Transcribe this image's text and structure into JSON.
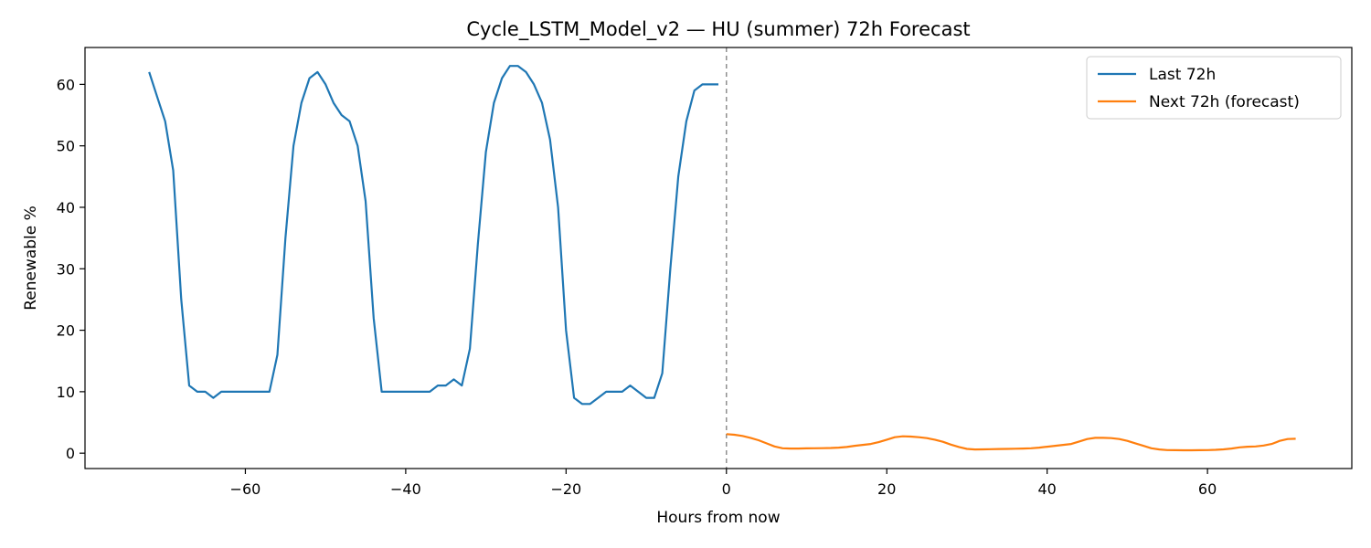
{
  "chart_data": {
    "type": "line",
    "title": "Cycle_LSTM_Model_v2 — HU (summer) 72h Forecast",
    "xlabel": "Hours from now",
    "ylabel": "Renewable %",
    "xlim": [
      -80,
      78
    ],
    "ylim": [
      -2.5,
      66
    ],
    "xticks": [
      -60,
      -40,
      -20,
      0,
      20,
      40,
      60
    ],
    "yticks": [
      0,
      10,
      20,
      30,
      40,
      50,
      60
    ],
    "tick_labels_x": [
      "−60",
      "−40",
      "−20",
      "0",
      "20",
      "40",
      "60"
    ],
    "tick_labels_y": [
      "0",
      "10",
      "20",
      "30",
      "40",
      "50",
      "60"
    ],
    "vline_x": 0,
    "legend": {
      "placement": "top-right"
    },
    "series": [
      {
        "name": "Last 72h",
        "color": "#1f77b4",
        "x": [
          -72,
          -71,
          -70,
          -69,
          -68,
          -67,
          -66,
          -65,
          -64,
          -63,
          -62,
          -61,
          -60,
          -59,
          -58,
          -57,
          -56,
          -55,
          -54,
          -53,
          -52,
          -51,
          -50,
          -49,
          -48,
          -47,
          -46,
          -45,
          -44,
          -43,
          -42,
          -41,
          -40,
          -39,
          -38,
          -37,
          -36,
          -35,
          -34,
          -33,
          -32,
          -31,
          -30,
          -29,
          -28,
          -27,
          -26,
          -25,
          -24,
          -23,
          -22,
          -21,
          -20,
          -19,
          -18,
          -17,
          -16,
          -15,
          -14,
          -13,
          -12,
          -11,
          -10,
          -9,
          -8,
          -7,
          -6,
          -5,
          -4,
          -3,
          -2,
          -1
        ],
        "values": [
          62,
          58,
          54,
          46,
          25,
          11,
          10,
          10,
          9,
          10,
          10,
          10,
          10,
          10,
          10,
          10,
          16,
          35,
          50,
          57,
          61,
          62,
          60,
          57,
          55,
          54,
          50,
          41,
          22,
          10,
          10,
          10,
          10,
          10,
          10,
          10,
          11,
          11,
          12,
          11,
          17,
          34,
          49,
          57,
          61,
          63,
          63,
          62,
          60,
          57,
          51,
          40,
          20,
          9,
          8,
          8,
          9,
          10,
          10,
          10,
          11,
          10,
          9,
          9,
          13,
          30,
          45,
          54,
          59,
          60,
          60,
          60
        ]
      },
      {
        "name": "Next 72h (forecast)",
        "color": "#ff7f0e",
        "x": [
          0,
          1,
          2,
          3,
          4,
          5,
          6,
          7,
          8,
          9,
          10,
          11,
          12,
          13,
          14,
          15,
          16,
          17,
          18,
          19,
          20,
          21,
          22,
          23,
          24,
          25,
          26,
          27,
          28,
          29,
          30,
          31,
          32,
          33,
          34,
          35,
          36,
          37,
          38,
          39,
          40,
          41,
          42,
          43,
          44,
          45,
          46,
          47,
          48,
          49,
          50,
          51,
          52,
          53,
          54,
          55,
          56,
          57,
          58,
          59,
          60,
          61,
          62,
          63,
          64,
          65,
          66,
          67,
          68,
          69,
          70,
          71
        ],
        "values": [
          3.1,
          3.0,
          2.8,
          2.5,
          2.1,
          1.6,
          1.1,
          0.8,
          0.75,
          0.75,
          0.78,
          0.8,
          0.82,
          0.85,
          0.9,
          1.0,
          1.2,
          1.35,
          1.5,
          1.8,
          2.2,
          2.6,
          2.75,
          2.7,
          2.6,
          2.45,
          2.2,
          1.85,
          1.4,
          1.0,
          0.7,
          0.6,
          0.62,
          0.65,
          0.68,
          0.7,
          0.72,
          0.75,
          0.8,
          0.9,
          1.05,
          1.2,
          1.35,
          1.5,
          1.9,
          2.3,
          2.5,
          2.5,
          2.45,
          2.3,
          2.0,
          1.6,
          1.2,
          0.8,
          0.6,
          0.5,
          0.48,
          0.47,
          0.47,
          0.48,
          0.5,
          0.55,
          0.62,
          0.75,
          0.95,
          1.05,
          1.1,
          1.25,
          1.5,
          2.0,
          2.3,
          2.35
        ]
      }
    ]
  }
}
